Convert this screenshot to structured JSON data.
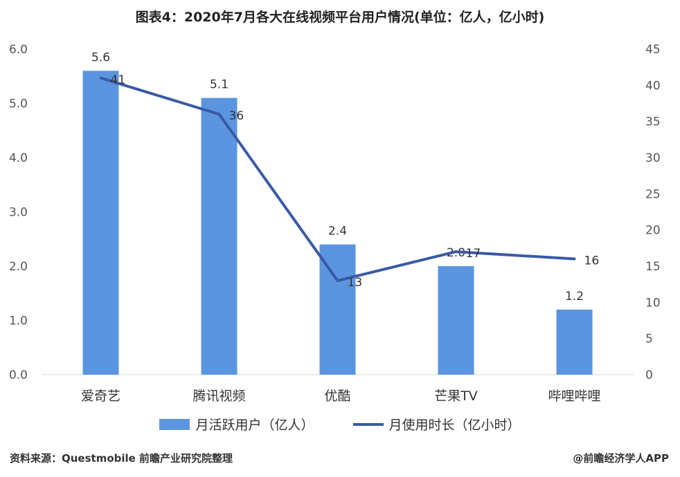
{
  "title": "图表4：2020年7月各大在线视频平台用户情况(单位：亿人，亿小时)",
  "source": "资料来源：Questmobile 前瞻产业研究院整理",
  "credit": "@前瞻经济学人APP",
  "legend": {
    "bar": "月活跃用户（亿人）",
    "line": "月使用时长（亿小时）"
  },
  "colors": {
    "bar": "#5b95e0",
    "line": "#3a5aa5"
  },
  "chart_data": {
    "type": "bar",
    "title": "图表4：2020年7月各大在线视频平台用户情况(单位：亿人，亿小时)",
    "categories": [
      "爱奇艺",
      "腾讯视频",
      "优酷",
      "芒果TV",
      "哔哩哔哩"
    ],
    "series": [
      {
        "name": "月活跃用户（亿人）",
        "type": "bar",
        "axis": "left",
        "values": [
          5.6,
          5.1,
          2.4,
          2.0,
          1.2
        ],
        "labels": [
          "5.6",
          "5.1",
          "2.4",
          "2.0",
          "1.2"
        ]
      },
      {
        "name": "月使用时长（亿小时）",
        "type": "line",
        "axis": "right",
        "values": [
          41,
          36,
          13,
          17,
          16
        ],
        "labels": [
          "41",
          "36",
          "13",
          "17",
          "16"
        ]
      }
    ],
    "y_left": {
      "min": 0,
      "max": 6,
      "step": 1,
      "ticks": [
        "0.0",
        "1.0",
        "2.0",
        "3.0",
        "4.0",
        "5.0",
        "6.0"
      ]
    },
    "y_right": {
      "min": 0,
      "max": 45,
      "step": 5,
      "ticks": [
        "0",
        "5",
        "10",
        "15",
        "20",
        "25",
        "30",
        "35",
        "40",
        "45"
      ]
    },
    "grid": false,
    "legend_position": "bottom"
  }
}
